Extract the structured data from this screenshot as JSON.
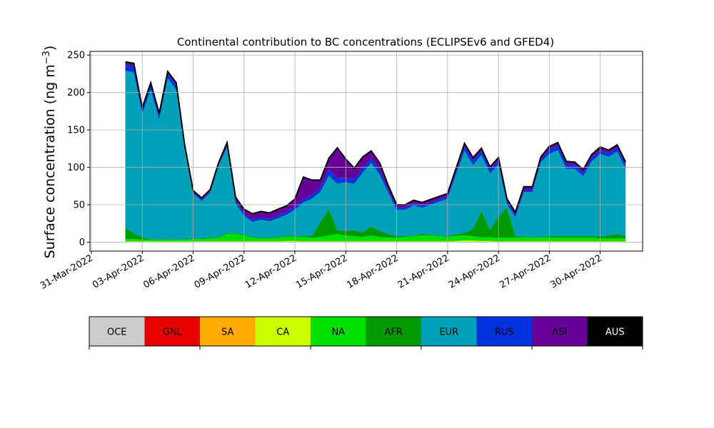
{
  "chart_data": {
    "type": "area",
    "stacked": true,
    "title": "Continental contribution to BC concentrations (ECLIPSEv6 and GFED4)",
    "ylabel": "Surface concentration (ng m$^{-3}$)",
    "xlabel": "",
    "ylim": [
      -12,
      255
    ],
    "xlim": [
      "2022-03-30T22:00",
      "2022-05-02T12:00"
    ],
    "yticks": [
      0,
      50,
      100,
      150,
      200,
      250
    ],
    "xticks": [
      "31-Mar-2022",
      "03-Apr-2022",
      "06-Apr-2022",
      "09-Apr-2022",
      "12-Apr-2022",
      "15-Apr-2022",
      "18-Apr-2022",
      "21-Apr-2022",
      "24-Apr-2022",
      "27-Apr-2022",
      "30-Apr-2022"
    ],
    "grid": true,
    "x": [
      "2022-04-02",
      "2022-04-02T12:00",
      "2022-04-03",
      "2022-04-03T12:00",
      "2022-04-04",
      "2022-04-04T12:00",
      "2022-04-05",
      "2022-04-05T12:00",
      "2022-04-06",
      "2022-04-06T12:00",
      "2022-04-07",
      "2022-04-07T12:00",
      "2022-04-08",
      "2022-04-08T12:00",
      "2022-04-09",
      "2022-04-09T12:00",
      "2022-04-10",
      "2022-04-10T12:00",
      "2022-04-11",
      "2022-04-11T12:00",
      "2022-04-12",
      "2022-04-12T12:00",
      "2022-04-13",
      "2022-04-13T12:00",
      "2022-04-14",
      "2022-04-14T12:00",
      "2022-04-15",
      "2022-04-15T12:00",
      "2022-04-16",
      "2022-04-16T12:00",
      "2022-04-17",
      "2022-04-17T12:00",
      "2022-04-18",
      "2022-04-18T12:00",
      "2022-04-19",
      "2022-04-19T12:00",
      "2022-04-20",
      "2022-04-20T12:00",
      "2022-04-21",
      "2022-04-21T12:00",
      "2022-04-22",
      "2022-04-22T12:00",
      "2022-04-23",
      "2022-04-23T12:00",
      "2022-04-24",
      "2022-04-24T12:00",
      "2022-04-25",
      "2022-04-25T12:00",
      "2022-04-26",
      "2022-04-26T12:00",
      "2022-04-27",
      "2022-04-27T12:00",
      "2022-04-28",
      "2022-04-28T12:00",
      "2022-04-29",
      "2022-04-29T12:00",
      "2022-04-30",
      "2022-04-30T12:00",
      "2022-05-01",
      "2022-05-01T12:00"
    ],
    "series": [
      {
        "name": "OCE",
        "color": "#cccccc",
        "values": [
          0.5,
          0.5,
          0.5,
          0.5,
          0.5,
          0.5,
          0.5,
          0.5,
          0.5,
          0.5,
          0.5,
          0.5,
          0.5,
          0.5,
          0.5,
          0.5,
          0.5,
          0.5,
          0.5,
          0.5,
          0.5,
          0.5,
          0.5,
          0.5,
          0.5,
          0.5,
          0.5,
          0.5,
          0.5,
          0.5,
          0.5,
          0.5,
          0.5,
          0.5,
          0.5,
          0.5,
          0.5,
          0.5,
          0.5,
          0.5,
          0.5,
          0.5,
          0.5,
          0.5,
          0.5,
          0.5,
          0.5,
          0.5,
          0.5,
          0.5,
          0.5,
          0.5,
          0.5,
          0.5,
          0.5,
          0.5,
          0.5,
          0.5,
          0.5,
          0.5
        ]
      },
      {
        "name": "GNL",
        "color": "#e60000",
        "values": [
          0,
          0,
          0,
          0,
          0,
          0,
          0,
          0,
          0,
          0,
          0,
          0,
          0,
          0,
          0,
          0,
          0,
          0,
          0,
          0,
          0,
          0,
          0,
          0,
          0,
          0,
          0,
          0,
          0,
          0,
          0,
          0,
          0,
          0,
          0,
          0,
          0,
          0,
          0,
          0,
          0,
          0,
          0,
          0,
          0,
          0,
          0,
          0,
          0,
          0,
          0,
          0,
          0,
          0,
          0,
          0,
          0,
          0,
          0,
          0
        ]
      },
      {
        "name": "SA",
        "color": "#ffaa00",
        "values": [
          0,
          0,
          0,
          0,
          0,
          0,
          0,
          0,
          0,
          0,
          0,
          0,
          0,
          0,
          0,
          0,
          0,
          0,
          0,
          0,
          0,
          0,
          0,
          0,
          0,
          0,
          0,
          0,
          0,
          0,
          0,
          0,
          0,
          0,
          0,
          0,
          0,
          0,
          0,
          0,
          0,
          0,
          0,
          0,
          0,
          0,
          0,
          0,
          0,
          0,
          0,
          0,
          0,
          0,
          0,
          0,
          0,
          0,
          0,
          0
        ]
      },
      {
        "name": "CA",
        "color": "#ccff00",
        "values": [
          0.5,
          0.5,
          0.5,
          0.5,
          0.5,
          0.5,
          0.5,
          0.5,
          0.5,
          0.5,
          0.5,
          0.5,
          0.5,
          0.5,
          0.5,
          0.5,
          0.5,
          0.5,
          0.5,
          1,
          1,
          0.5,
          0.5,
          0.5,
          0.5,
          0.5,
          0.5,
          0.5,
          0.5,
          0.5,
          0.5,
          0.5,
          0.5,
          0.5,
          0.5,
          0.5,
          0.5,
          0.5,
          0.5,
          1,
          1.5,
          1.5,
          1,
          1,
          0.5,
          0.5,
          0.5,
          0.5,
          0.5,
          0.5,
          0.5,
          0.5,
          0.5,
          0.5,
          0.5,
          0.5,
          0.5,
          0.5,
          0.5,
          0.5
        ]
      },
      {
        "name": "NA",
        "color": "#00e000",
        "values": [
          3,
          3,
          2.5,
          2,
          2,
          2,
          2,
          2,
          3,
          3,
          4,
          5,
          10,
          10,
          8,
          5,
          4,
          4,
          5,
          6,
          6,
          6,
          5,
          6,
          8,
          10,
          8,
          7,
          6,
          8,
          6,
          5,
          5,
          6,
          7,
          8,
          8,
          7,
          6,
          7,
          7,
          6,
          5,
          5,
          5,
          5,
          5,
          5,
          5,
          5,
          5,
          5,
          5,
          5,
          5,
          5,
          4,
          4,
          4,
          4
        ]
      },
      {
        "name": "AFR",
        "color": "#009900",
        "values": [
          15,
          8,
          3,
          1,
          1,
          1,
          1,
          1,
          1,
          1,
          1,
          1,
          1,
          1,
          1,
          1,
          1,
          1,
          1,
          1,
          1,
          1,
          2,
          20,
          35,
          5,
          6,
          8,
          6,
          12,
          8,
          5,
          2,
          1,
          1,
          2,
          1,
          1,
          1,
          2,
          3,
          10,
          35,
          10,
          28,
          40,
          2,
          1,
          1,
          1,
          2,
          2,
          2,
          2,
          2,
          2,
          3,
          4,
          6,
          3
        ]
      },
      {
        "name": "EUR",
        "color": "#00a0b8",
        "values": [
          210,
          215,
          165,
          200,
          160,
          215,
          200,
          120,
          60,
          50,
          60,
          95,
          115,
          40,
          25,
          20,
          24,
          22,
          25,
          28,
          35,
          45,
          50,
          40,
          45,
          62,
          65,
          62,
          80,
          85,
          75,
          55,
          35,
          35,
          40,
          35,
          40,
          45,
          50,
          80,
          110,
          85,
          75,
          75,
          70,
          5,
          25,
          60,
          60,
          100,
          110,
          115,
          90,
          90,
          80,
          100,
          110,
          105,
          110,
          90
        ]
      },
      {
        "name": "RUS",
        "color": "#0033dd",
        "values": [
          8,
          8,
          5,
          6,
          5,
          6,
          6,
          4,
          2,
          2,
          2,
          2,
          3,
          3,
          3,
          3,
          3,
          3,
          4,
          4,
          4,
          4,
          5,
          6,
          8,
          8,
          6,
          6,
          6,
          6,
          6,
          4,
          3,
          3,
          3,
          3,
          3,
          3,
          3,
          4,
          6,
          6,
          5,
          5,
          5,
          3,
          3,
          3,
          3,
          3,
          6,
          6,
          6,
          5,
          5,
          5,
          5,
          5,
          5,
          5
        ]
      },
      {
        "name": "ASI",
        "color": "#660099",
        "values": [
          4,
          4,
          3,
          3,
          3,
          3,
          3,
          2,
          2,
          2,
          2,
          2,
          3,
          5,
          6,
          8,
          8,
          8,
          8,
          8,
          10,
          30,
          20,
          10,
          15,
          40,
          25,
          15,
          15,
          10,
          10,
          6,
          4,
          4,
          4,
          4,
          4,
          4,
          4,
          4,
          4,
          4,
          4,
          4,
          4,
          4,
          4,
          4,
          4,
          4,
          4,
          4,
          4,
          4,
          4,
          4,
          4,
          4,
          4,
          4
        ]
      },
      {
        "name": "AUS",
        "color": "#000000",
        "values": [
          0,
          0,
          0,
          0,
          0,
          0,
          0,
          0,
          0,
          0,
          0,
          0,
          0,
          0,
          0,
          0,
          0,
          0,
          0,
          0,
          0,
          0,
          0,
          0,
          0,
          0,
          0,
          0,
          0,
          0,
          0,
          0,
          0,
          0,
          0,
          0,
          0,
          0,
          0,
          0,
          0,
          0,
          0,
          0,
          0,
          0,
          0,
          0,
          0,
          0,
          0,
          0,
          0,
          0,
          0,
          0,
          0,
          0,
          0,
          0
        ]
      }
    ],
    "total_outline_color": "#000000"
  }
}
